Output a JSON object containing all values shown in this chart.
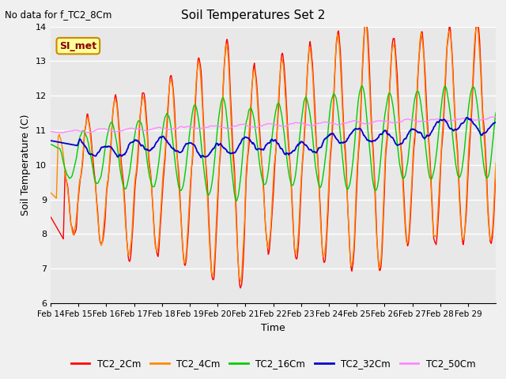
{
  "title": "Soil Temperatures Set 2",
  "subtitle": "No data for f_TC2_8Cm",
  "xlabel": "Time",
  "ylabel": "Soil Temperature (C)",
  "ylim": [
    6.0,
    14.0
  ],
  "yticks": [
    6.0,
    7.0,
    8.0,
    9.0,
    10.0,
    11.0,
    12.0,
    13.0,
    14.0
  ],
  "xtick_labels": [
    "Feb 14",
    "Feb 15",
    "Feb 16",
    "Feb 17",
    "Feb 18",
    "Feb 19",
    "Feb 20",
    "Feb 21",
    "Feb 22",
    "Feb 23",
    "Feb 24",
    "Feb 25",
    "Feb 26",
    "Feb 27",
    "Feb 28",
    "Feb 29"
  ],
  "series_names": [
    "TC2_2Cm",
    "TC2_4Cm",
    "TC2_16Cm",
    "TC2_32Cm",
    "TC2_50Cm"
  ],
  "series_colors": [
    "#ff0000",
    "#ff8800",
    "#00cc00",
    "#0000cc",
    "#ff88ff"
  ],
  "background_color": "#e8e8e8",
  "grid_color": "#ffffff",
  "annotation_text": "SI_met",
  "annotation_bg": "#ffff99",
  "annotation_border": "#cc8800",
  "fig_facecolor": "#f0f0f0"
}
